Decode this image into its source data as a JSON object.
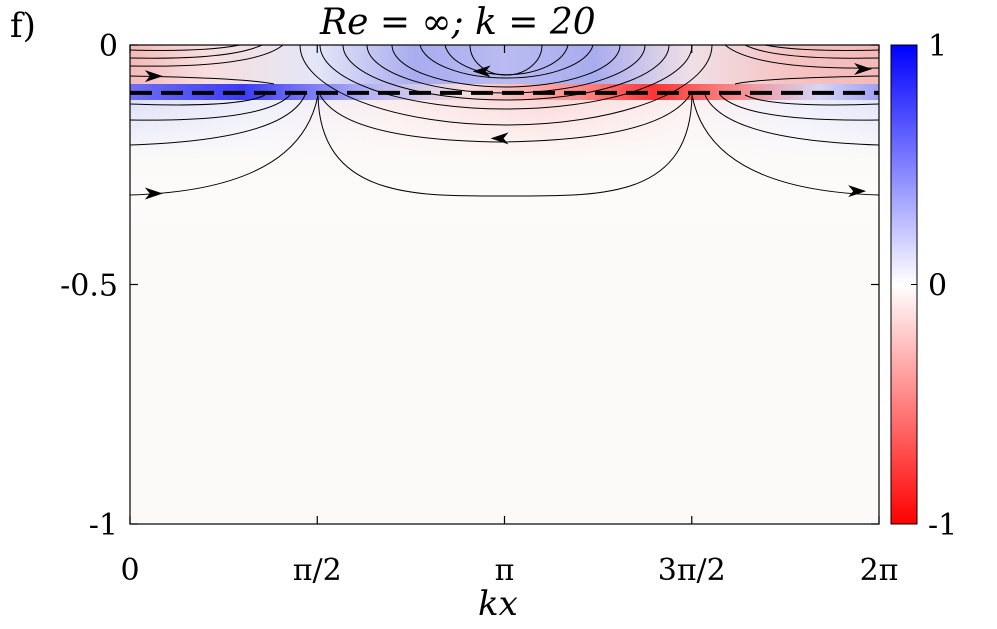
{
  "chart_data": {
    "type": "heatmap",
    "panel_label": "f)",
    "title": "Re = ∞; k = 20",
    "xlabel": "kx",
    "ylabel": "",
    "xlim": [
      0,
      6.2832
    ],
    "ylim": [
      -1,
      0
    ],
    "x_ticks": [
      {
        "value": 0,
        "label": "0"
      },
      {
        "value": 1.5708,
        "label": "π/2"
      },
      {
        "value": 3.1416,
        "label": "π"
      },
      {
        "value": 4.7124,
        "label": "3π/2"
      },
      {
        "value": 6.2832,
        "label": "2π"
      }
    ],
    "y_ticks": [
      {
        "value": 0,
        "label": "0"
      },
      {
        "value": -0.5,
        "label": "-0.5"
      },
      {
        "value": -1,
        "label": "-1"
      }
    ],
    "colorbar": {
      "range": [
        -1,
        1
      ],
      "ticks": [
        {
          "value": 1,
          "label": "1"
        },
        {
          "value": 0,
          "label": "0"
        },
        {
          "value": -1,
          "label": "-1"
        }
      ],
      "colors": {
        "max": "#0000ff",
        "mid": "#ffffff",
        "min": "#ff0000"
      }
    },
    "critical_layer": {
      "y": -0.1,
      "style": "dashed",
      "color": "#000000"
    },
    "field_description": "Vorticity field concentrated near the surface; positive (blue) and negative (red) lobes alternating along kx, strongest along the dashed line at y = -0.1.",
    "streamlines": {
      "description": "Arch-shaped streamlines centred near kx = 0, π and 2π, decaying with depth",
      "arrows": [
        {
          "x": 0.2,
          "y": -0.065,
          "direction": "right"
        },
        {
          "x": 2.95,
          "y": -0.055,
          "direction": "left"
        },
        {
          "x": 6.15,
          "y": -0.05,
          "direction": "right"
        },
        {
          "x": 3.1,
          "y": -0.195,
          "direction": "left"
        },
        {
          "x": 0.2,
          "y": -0.31,
          "direction": "right"
        },
        {
          "x": 6.1,
          "y": -0.305,
          "direction": "right"
        }
      ]
    }
  }
}
